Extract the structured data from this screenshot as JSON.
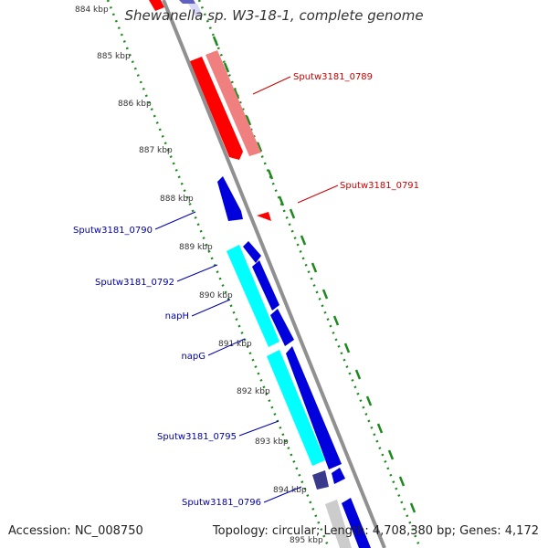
{
  "header": {
    "title": "Shewanella sp. W3-18-1, complete genome"
  },
  "footer": {
    "accession": "Accession: NC_008750",
    "stats": "Topology: circular; Length: 4,708,380 bp; Genes: 4,172"
  },
  "ticks": [
    "884 kbp",
    "885 kbp",
    "886 kbp",
    "887 kbp",
    "888 kbp",
    "889 kbp",
    "890 kbp",
    "891 kbp",
    "892 kbp",
    "893 kbp",
    "894 kbp",
    "895 kbp"
  ],
  "gene_labels": {
    "sputw3181_0789": "Sputw3181_0789",
    "sputw3181_0791": "Sputw3181_0791",
    "sputw3181_0790": "Sputw3181_0790",
    "sputw3181_0792": "Sputw3181_0792",
    "naph": "napH",
    "napg": "napG",
    "sputw3181_0795": "Sputw3181_0795",
    "sputw3181_0796": "Sputw3181_0796"
  },
  "colors": {
    "forward_label": "#cc0000",
    "reverse_label": "#0000aa",
    "backbone": "#808080",
    "tick_marks": "#228B22",
    "red": "#ff0000",
    "pink": "#f08080",
    "blue": "#0000dd",
    "cyan": "#00ffff",
    "dark_blue": "#3a3a8c",
    "grey": "#cccccc"
  }
}
